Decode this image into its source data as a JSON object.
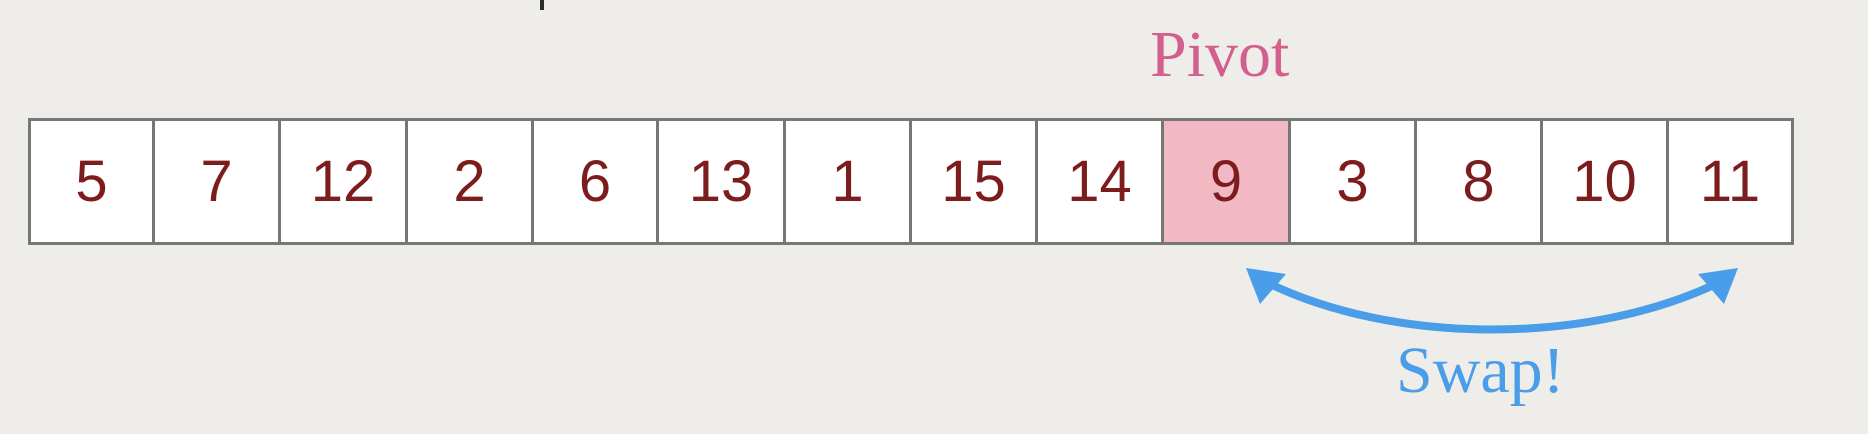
{
  "pivot_label": "Pivot",
  "swap_label": "Swap!",
  "cells": [
    {
      "value": "5",
      "pivot": false
    },
    {
      "value": "7",
      "pivot": false
    },
    {
      "value": "12",
      "pivot": false
    },
    {
      "value": "2",
      "pivot": false
    },
    {
      "value": "6",
      "pivot": false
    },
    {
      "value": "13",
      "pivot": false
    },
    {
      "value": "1",
      "pivot": false
    },
    {
      "value": "15",
      "pivot": false
    },
    {
      "value": "14",
      "pivot": false
    },
    {
      "value": "9",
      "pivot": true
    },
    {
      "value": "3",
      "pivot": false
    },
    {
      "value": "8",
      "pivot": false
    },
    {
      "value": "10",
      "pivot": false
    },
    {
      "value": "11",
      "pivot": false
    }
  ],
  "colors": {
    "background": "#efedea",
    "cell_text": "#7c1c1c",
    "pivot_fill": "#f2b9c4",
    "pivot_label": "#d25f8d",
    "swap": "#4a9de8"
  },
  "icons": {
    "swap_arrow": "curved-double-arrow-icon"
  }
}
